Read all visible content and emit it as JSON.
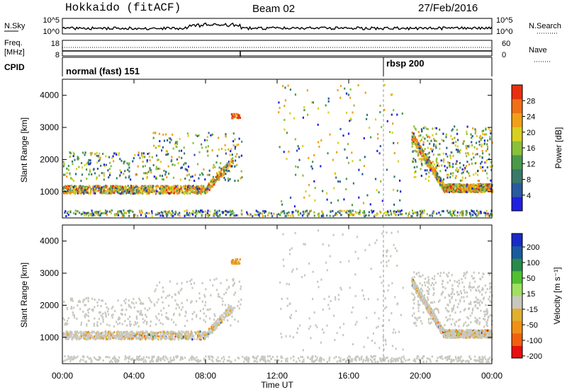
{
  "header": {
    "station": "Hokkaido (fitACF)",
    "beam": "Beam 02",
    "date": "27/Feb/2016"
  },
  "strips": {
    "nsky_label": "N.Sky",
    "nsky_ticks": [
      "10^5",
      "10^0"
    ],
    "nsearch_label": "N.Search",
    "nsearch_ticks": [
      "10^5",
      "10^0"
    ],
    "freq_label_line1": "Freq.",
    "freq_label_line2": "[MHz]",
    "freq_ticks": [
      "18",
      "8"
    ],
    "nave_label": "Nave",
    "nave_ticks": [
      "60",
      "0"
    ],
    "cpid_label": "CPID",
    "cpid_modes": [
      {
        "name": "normal (fast) 151",
        "start_hour": 0
      },
      {
        "name": "rbsp 200",
        "start_hour": 18
      }
    ]
  },
  "chart_data": [
    {
      "type": "heatmap",
      "quantity": "Power",
      "ylabel": "Slant Range [km]",
      "y_ticks": [
        "4000",
        "3000",
        "2000",
        "1000"
      ],
      "ylim": [
        180,
        4500
      ],
      "xlim": [
        0,
        24
      ],
      "colorbar_label": "Power [dB]",
      "colorbar_ticks": [
        "28",
        "24",
        "20",
        "16",
        "12",
        "8",
        "4"
      ],
      "colorbar_range": [
        0,
        32
      ],
      "colors": [
        "#2020e0",
        "#2a5aa0",
        "#3a7a6a",
        "#4a9a4a",
        "#8ac03a",
        "#d8d020",
        "#f0a018",
        "#f07018",
        "#e83010"
      ]
    },
    {
      "type": "heatmap",
      "quantity": "Velocity",
      "ylabel": "Slant Range [km]",
      "y_ticks": [
        "4000",
        "3000",
        "2000",
        "1000"
      ],
      "ylim": [
        180,
        4500
      ],
      "xlim": [
        0,
        24
      ],
      "colorbar_label": "Velocity [m s⁻¹]",
      "colorbar_ticks": [
        "200",
        "100",
        "50",
        "15",
        "-15",
        "-50",
        "-100",
        "-200"
      ],
      "colorbar_range": [
        -250,
        250
      ],
      "colors": [
        "#e81010",
        "#f06010",
        "#f09018",
        "#e0b030",
        "#c8c8c0",
        "#a0e060",
        "#50c030",
        "#2a8a4a",
        "#1a5aa0",
        "#1a2ac8"
      ]
    }
  ],
  "xaxis": {
    "ticks": [
      "00:00",
      "04:00",
      "08:00",
      "12:00",
      "16:00",
      "20:00",
      "00:00"
    ],
    "label": "Time UT"
  }
}
